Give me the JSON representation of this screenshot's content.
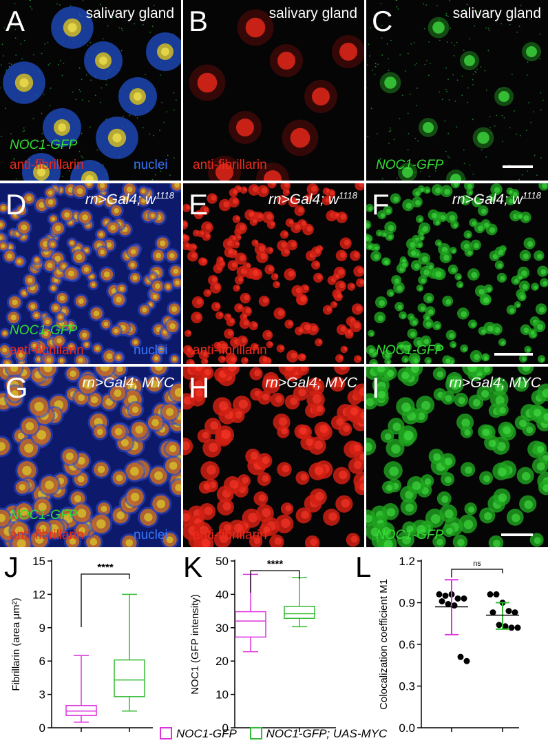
{
  "panels": {
    "A": {
      "letter": "A",
      "title": "salivary gland",
      "line1": "NOC1-GFP",
      "line2a": "anti-fibrillarin",
      "line2b": "nuclei"
    },
    "B": {
      "letter": "B",
      "title": "salivary gland",
      "line2a": "anti-fibrillarin"
    },
    "C": {
      "letter": "C",
      "title": "salivary gland",
      "line1": "NOC1-GFP"
    },
    "D": {
      "letter": "D",
      "title": "rn>Gal4; w",
      "sup": "1118",
      "line1": "NOC1-GFP",
      "line2a": "anti-fibrillarin",
      "line2b": "nuclei"
    },
    "E": {
      "letter": "E",
      "title": "rn>Gal4; w",
      "sup": "1118",
      "line2a": "anti-fibrillarin"
    },
    "F": {
      "letter": "F",
      "title": "rn>Gal4; w",
      "sup": "1118",
      "line1": "NOC1-GFP"
    },
    "G": {
      "letter": "G",
      "title": "rn>Gal4; MYC",
      "line1": "NOC1-GFP",
      "line2a": "anti-fibrillarin",
      "line2b": "nuclei"
    },
    "H": {
      "letter": "H",
      "title": "rn>Gal4; MYC",
      "line2a": "anti-fibrillarin"
    },
    "I": {
      "letter": "I",
      "title": "rn>Gal4; MYC",
      "line1": "NOC1-GFP"
    }
  },
  "chart_data": [
    {
      "id": "J",
      "type": "box",
      "letter": "J",
      "ylabel": "Fibrillarin (area μm²)",
      "ylim": [
        0,
        15
      ],
      "yticks": [
        "0",
        "3",
        "6",
        "9",
        "12",
        "15"
      ],
      "significance": "****",
      "series": [
        {
          "name": "NOC1-GFP",
          "color": "#dd33dd",
          "min": 0.5,
          "q1": 1.1,
          "median": 1.5,
          "q3": 2.0,
          "max": 6.5
        },
        {
          "name": "NOC1-GFP; UAS-MYC",
          "color": "#33bb33",
          "min": 1.5,
          "q1": 2.8,
          "median": 4.3,
          "q3": 6.1,
          "max": 12.0
        }
      ]
    },
    {
      "id": "K",
      "type": "box",
      "letter": "K",
      "ylabel": "NOC1 (GFP intensity)",
      "ylim": [
        0,
        50
      ],
      "yticks": [
        "0",
        "10",
        "20",
        "30",
        "40",
        "50"
      ],
      "significance": "****",
      "series": [
        {
          "name": "NOC1-GFP",
          "color": "#dd33dd",
          "min": 22.8,
          "q1": 27.2,
          "median": 32.0,
          "q3": 34.8,
          "max": 46.0
        },
        {
          "name": "NOC1-GFP; UAS-MYC",
          "color": "#33bb33",
          "min": 30.3,
          "q1": 32.8,
          "median": 34.2,
          "q3": 36.4,
          "max": 45.0
        }
      ]
    },
    {
      "id": "L",
      "type": "scatter",
      "letter": "L",
      "ylabel": "Colocalization coefficient M1",
      "ylim": [
        0,
        1.2
      ],
      "yticks": [
        "0.0",
        "0.3",
        "0.6",
        "0.9",
        "1.2"
      ],
      "significance": "ns",
      "series": [
        {
          "name": "NOC1-GFP",
          "color": "#dd33dd",
          "mean": 0.87,
          "sd_low": 0.67,
          "sd_high": 1.065,
          "points": [
            0.96,
            0.95,
            0.96,
            0.93,
            0.93,
            0.91,
            0.89,
            0.88,
            0.51,
            0.48
          ]
        },
        {
          "name": "NOC1-GFP; UAS-MYC",
          "color": "#33bb33",
          "mean": 0.81,
          "sd_low": 0.71,
          "sd_high": 0.9,
          "points": [
            0.96,
            0.96,
            0.9,
            0.84,
            0.83,
            0.83,
            0.74,
            0.73,
            0.72,
            0.72
          ]
        }
      ]
    }
  ],
  "legend": [
    {
      "label": "NOC1-GFP",
      "color": "#dd33dd"
    },
    {
      "label": "NOC1-GFP; UAS-MYC",
      "color": "#33bb33"
    }
  ]
}
